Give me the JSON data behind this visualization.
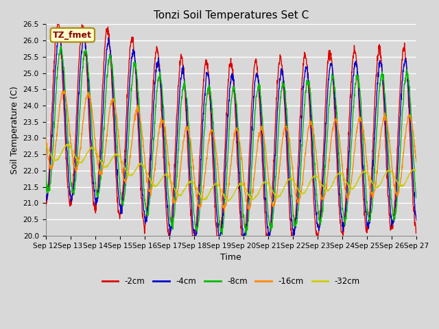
{
  "title": "Tonzi Soil Temperatures Set C",
  "xlabel": "Time",
  "ylabel": "Soil Temperature (C)",
  "annotation": "TZ_fmet",
  "ylim": [
    20.0,
    26.5
  ],
  "yticks": [
    20.0,
    20.5,
    21.0,
    21.5,
    22.0,
    22.5,
    23.0,
    23.5,
    24.0,
    24.5,
    25.0,
    25.5,
    26.0,
    26.5
  ],
  "xtick_labels": [
    "Sep 12",
    "Sep 13",
    "Sep 14",
    "Sep 15",
    "Sep 16",
    "Sep 17",
    "Sep 18",
    "Sep 19",
    "Sep 20",
    "Sep 21",
    "Sep 22",
    "Sep 23",
    "Sep 24",
    "Sep 25",
    "Sep 26",
    "Sep 27"
  ],
  "series_colors": [
    "#dd0000",
    "#0000cc",
    "#00bb00",
    "#ff8800",
    "#cccc00"
  ],
  "series_labels": [
    "-2cm",
    "-4cm",
    "-8cm",
    "-16cm",
    "-32cm"
  ],
  "background_color": "#d8d8d8",
  "plot_bg_color": "#d8d8d8",
  "grid_color": "#ffffff",
  "annotation_box_facecolor": "#ffffcc",
  "annotation_box_edgecolor": "#aa8800",
  "annotation_text_color": "#880000",
  "title_fontsize": 11,
  "axis_label_fontsize": 9,
  "tick_fontsize": 7.5,
  "legend_fontsize": 8.5,
  "n_points_per_day": 96,
  "days": 15
}
